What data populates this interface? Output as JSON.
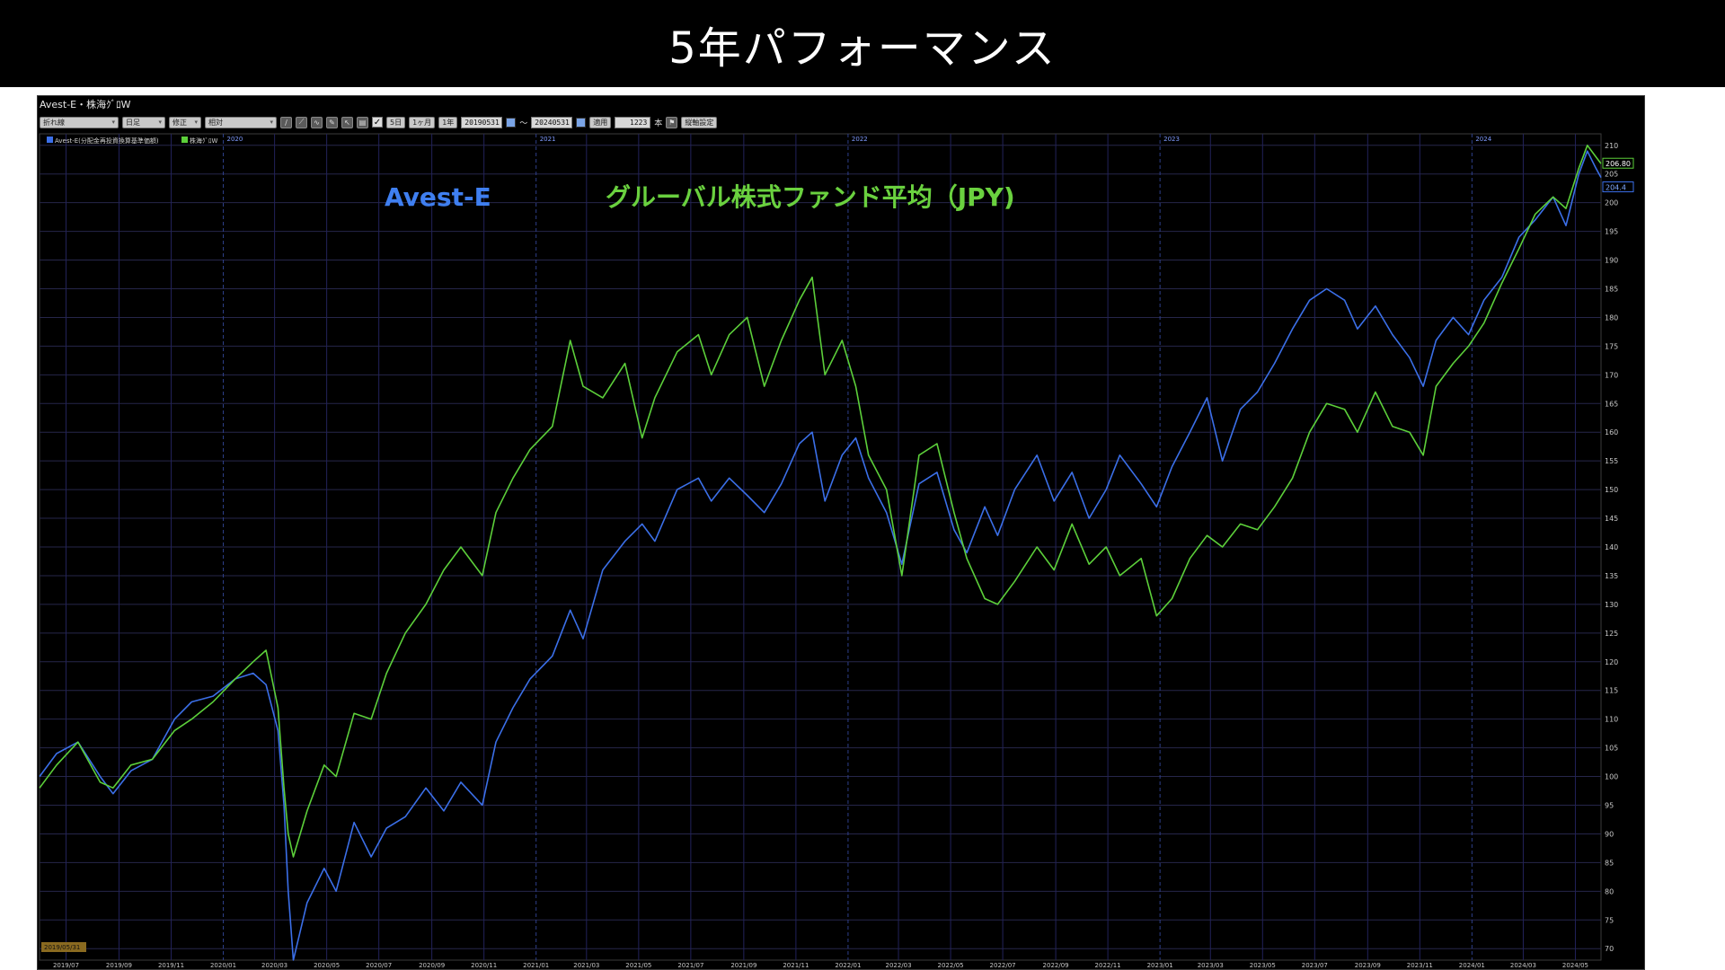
{
  "slide_title": "5年パフォーマンス",
  "window": {
    "title": "Avest-E・株海ｸﾞﾛW"
  },
  "toolbar": {
    "series_select": "折れ線",
    "period_select": "日足",
    "adjust_select": "修正",
    "scale_select": "相対",
    "btn_5d": "5日",
    "btn_1m": "1ヶ月",
    "btn_1y": "1年",
    "date_from": "20190531",
    "range_sep": "～",
    "date_to": "20240531",
    "apply_label": "適用",
    "bar_count": "1223",
    "bar_count_unit": "本",
    "settings_label": "縦軸設定"
  },
  "chart_data": {
    "type": "line",
    "title": "",
    "legend": [
      {
        "name": "Avest-E(分配金再投資換算基準価額)",
        "color": "#3b6fe8"
      },
      {
        "name": "株海ｸﾞﾛW",
        "color": "#5ccf3a"
      }
    ],
    "annotations": [
      {
        "text": "Avest-E",
        "color": "#3f7ff0"
      },
      {
        "text": "グルーバル株式ファンド平均（JPY)",
        "color": "#6ad13f"
      }
    ],
    "start_label": "2019/05/31",
    "last_values": {
      "green": "206.80",
      "blue": "204.4"
    },
    "ylim": [
      68,
      212
    ],
    "y_ticks": [
      70,
      75,
      80,
      85,
      90,
      95,
      100,
      105,
      110,
      115,
      120,
      125,
      130,
      135,
      140,
      145,
      150,
      155,
      160,
      165,
      170,
      175,
      180,
      185,
      190,
      195,
      200,
      205,
      210
    ],
    "x_ticks": [
      "2019/07",
      "2019/09",
      "2019/11",
      "2020/01",
      "2020/03",
      "2020/05",
      "2020/07",
      "2020/09",
      "2020/11",
      "2021/01",
      "2021/03",
      "2021/05",
      "2021/07",
      "2021/09",
      "2021/11",
      "2022/01",
      "2022/03",
      "2022/05",
      "2022/07",
      "2022/09",
      "2022/11",
      "2023/01",
      "2023/03",
      "2023/05",
      "2023/07",
      "2023/09",
      "2023/11",
      "2024/01",
      "2024/03",
      "2024/05"
    ],
    "year_markers": [
      "2020",
      "2021",
      "2022",
      "2023",
      "2024"
    ],
    "grid": true,
    "x_range": [
      "2019-05-31",
      "2024-05-31"
    ],
    "series": [
      {
        "name": "Avest-E(分配金再投資換算基準価額)",
        "color": "#3b6fe8",
        "points": [
          [
            "2019-05-31",
            100
          ],
          [
            "2019-06-20",
            104
          ],
          [
            "2019-07-15",
            106
          ],
          [
            "2019-08-10",
            100
          ],
          [
            "2019-08-25",
            97
          ],
          [
            "2019-09-15",
            101
          ],
          [
            "2019-10-10",
            103
          ],
          [
            "2019-11-05",
            110
          ],
          [
            "2019-11-25",
            113
          ],
          [
            "2019-12-20",
            114
          ],
          [
            "2020-01-15",
            117
          ],
          [
            "2020-02-05",
            118
          ],
          [
            "2020-02-20",
            116
          ],
          [
            "2020-03-05",
            108
          ],
          [
            "2020-03-12",
            95
          ],
          [
            "2020-03-17",
            80
          ],
          [
            "2020-03-23",
            68
          ],
          [
            "2020-04-08",
            78
          ],
          [
            "2020-04-28",
            84
          ],
          [
            "2020-05-12",
            80
          ],
          [
            "2020-06-02",
            92
          ],
          [
            "2020-06-22",
            86
          ],
          [
            "2020-07-10",
            91
          ],
          [
            "2020-08-01",
            93
          ],
          [
            "2020-08-25",
            98
          ],
          [
            "2020-09-15",
            94
          ],
          [
            "2020-10-05",
            99
          ],
          [
            "2020-10-30",
            95
          ],
          [
            "2020-11-15",
            106
          ],
          [
            "2020-12-05",
            112
          ],
          [
            "2020-12-25",
            117
          ],
          [
            "2021-01-20",
            121
          ],
          [
            "2021-02-10",
            129
          ],
          [
            "2021-02-25",
            124
          ],
          [
            "2021-03-20",
            136
          ],
          [
            "2021-04-15",
            141
          ],
          [
            "2021-05-05",
            144
          ],
          [
            "2021-05-20",
            141
          ],
          [
            "2021-06-15",
            150
          ],
          [
            "2021-07-10",
            152
          ],
          [
            "2021-07-25",
            148
          ],
          [
            "2021-08-15",
            152
          ],
          [
            "2021-09-05",
            149
          ],
          [
            "2021-09-25",
            146
          ],
          [
            "2021-10-15",
            151
          ],
          [
            "2021-11-05",
            158
          ],
          [
            "2021-11-20",
            160
          ],
          [
            "2021-12-05",
            148
          ],
          [
            "2021-12-25",
            156
          ],
          [
            "2022-01-10",
            159
          ],
          [
            "2022-01-25",
            152
          ],
          [
            "2022-02-15",
            146
          ],
          [
            "2022-03-05",
            137
          ],
          [
            "2022-03-25",
            151
          ],
          [
            "2022-04-15",
            153
          ],
          [
            "2022-05-05",
            143
          ],
          [
            "2022-05-20",
            139
          ],
          [
            "2022-06-10",
            147
          ],
          [
            "2022-06-25",
            142
          ],
          [
            "2022-07-15",
            150
          ],
          [
            "2022-08-10",
            156
          ],
          [
            "2022-08-30",
            148
          ],
          [
            "2022-09-20",
            153
          ],
          [
            "2022-10-10",
            145
          ],
          [
            "2022-10-30",
            150
          ],
          [
            "2022-11-15",
            156
          ],
          [
            "2022-12-10",
            151
          ],
          [
            "2022-12-28",
            147
          ],
          [
            "2023-01-15",
            154
          ],
          [
            "2023-02-05",
            160
          ],
          [
            "2023-02-25",
            166
          ],
          [
            "2023-03-15",
            155
          ],
          [
            "2023-04-05",
            164
          ],
          [
            "2023-04-25",
            167
          ],
          [
            "2023-05-15",
            172
          ],
          [
            "2023-06-05",
            178
          ],
          [
            "2023-06-25",
            183
          ],
          [
            "2023-07-15",
            185
          ],
          [
            "2023-08-05",
            183
          ],
          [
            "2023-08-20",
            178
          ],
          [
            "2023-09-10",
            182
          ],
          [
            "2023-09-30",
            177
          ],
          [
            "2023-10-20",
            173
          ],
          [
            "2023-11-05",
            168
          ],
          [
            "2023-11-20",
            176
          ],
          [
            "2023-12-10",
            180
          ],
          [
            "2023-12-28",
            177
          ],
          [
            "2024-01-15",
            183
          ],
          [
            "2024-02-05",
            187
          ],
          [
            "2024-02-25",
            194
          ],
          [
            "2024-03-15",
            197
          ],
          [
            "2024-04-05",
            201
          ],
          [
            "2024-04-20",
            196
          ],
          [
            "2024-05-05",
            205
          ],
          [
            "2024-05-15",
            209
          ],
          [
            "2024-05-25",
            206
          ],
          [
            "2024-05-31",
            204.4
          ]
        ]
      },
      {
        "name": "株海ｸﾞﾛW",
        "color": "#5ccf3a",
        "points": [
          [
            "2019-05-31",
            98
          ],
          [
            "2019-06-20",
            102
          ],
          [
            "2019-07-15",
            106
          ],
          [
            "2019-08-10",
            99
          ],
          [
            "2019-08-25",
            98
          ],
          [
            "2019-09-15",
            102
          ],
          [
            "2019-10-10",
            103
          ],
          [
            "2019-11-05",
            108
          ],
          [
            "2019-11-25",
            110
          ],
          [
            "2019-12-20",
            113
          ],
          [
            "2020-01-15",
            117
          ],
          [
            "2020-02-05",
            120
          ],
          [
            "2020-02-20",
            122
          ],
          [
            "2020-03-05",
            112
          ],
          [
            "2020-03-12",
            98
          ],
          [
            "2020-03-17",
            90
          ],
          [
            "2020-03-23",
            86
          ],
          [
            "2020-04-08",
            94
          ],
          [
            "2020-04-28",
            102
          ],
          [
            "2020-05-12",
            100
          ],
          [
            "2020-06-02",
            111
          ],
          [
            "2020-06-22",
            110
          ],
          [
            "2020-07-10",
            118
          ],
          [
            "2020-08-01",
            125
          ],
          [
            "2020-08-25",
            130
          ],
          [
            "2020-09-15",
            136
          ],
          [
            "2020-10-05",
            140
          ],
          [
            "2020-10-30",
            135
          ],
          [
            "2020-11-15",
            146
          ],
          [
            "2020-12-05",
            152
          ],
          [
            "2020-12-25",
            157
          ],
          [
            "2021-01-20",
            161
          ],
          [
            "2021-02-10",
            176
          ],
          [
            "2021-02-25",
            168
          ],
          [
            "2021-03-20",
            166
          ],
          [
            "2021-04-15",
            172
          ],
          [
            "2021-05-05",
            159
          ],
          [
            "2021-05-20",
            166
          ],
          [
            "2021-06-15",
            174
          ],
          [
            "2021-07-10",
            177
          ],
          [
            "2021-07-25",
            170
          ],
          [
            "2021-08-15",
            177
          ],
          [
            "2021-09-05",
            180
          ],
          [
            "2021-09-25",
            168
          ],
          [
            "2021-10-15",
            176
          ],
          [
            "2021-11-05",
            183
          ],
          [
            "2021-11-20",
            187
          ],
          [
            "2021-12-05",
            170
          ],
          [
            "2021-12-25",
            176
          ],
          [
            "2022-01-10",
            168
          ],
          [
            "2022-01-25",
            156
          ],
          [
            "2022-02-15",
            150
          ],
          [
            "2022-03-05",
            135
          ],
          [
            "2022-03-25",
            156
          ],
          [
            "2022-04-15",
            158
          ],
          [
            "2022-05-05",
            146
          ],
          [
            "2022-05-20",
            138
          ],
          [
            "2022-06-10",
            131
          ],
          [
            "2022-06-25",
            130
          ],
          [
            "2022-07-15",
            134
          ],
          [
            "2022-08-10",
            140
          ],
          [
            "2022-08-30",
            136
          ],
          [
            "2022-09-20",
            144
          ],
          [
            "2022-10-10",
            137
          ],
          [
            "2022-10-30",
            140
          ],
          [
            "2022-11-15",
            135
          ],
          [
            "2022-12-10",
            138
          ],
          [
            "2022-12-28",
            128
          ],
          [
            "2023-01-15",
            131
          ],
          [
            "2023-02-05",
            138
          ],
          [
            "2023-02-25",
            142
          ],
          [
            "2023-03-15",
            140
          ],
          [
            "2023-04-05",
            144
          ],
          [
            "2023-04-25",
            143
          ],
          [
            "2023-05-15",
            147
          ],
          [
            "2023-06-05",
            152
          ],
          [
            "2023-06-25",
            160
          ],
          [
            "2023-07-15",
            165
          ],
          [
            "2023-08-05",
            164
          ],
          [
            "2023-08-20",
            160
          ],
          [
            "2023-09-10",
            167
          ],
          [
            "2023-09-30",
            161
          ],
          [
            "2023-10-20",
            160
          ],
          [
            "2023-11-05",
            156
          ],
          [
            "2023-11-20",
            168
          ],
          [
            "2023-12-10",
            172
          ],
          [
            "2023-12-28",
            175
          ],
          [
            "2024-01-15",
            179
          ],
          [
            "2024-02-05",
            186
          ],
          [
            "2024-02-25",
            192
          ],
          [
            "2024-03-15",
            198
          ],
          [
            "2024-04-05",
            201
          ],
          [
            "2024-04-20",
            199
          ],
          [
            "2024-05-05",
            206
          ],
          [
            "2024-05-15",
            210
          ],
          [
            "2024-05-25",
            208
          ],
          [
            "2024-05-31",
            206.8
          ]
        ]
      }
    ]
  }
}
